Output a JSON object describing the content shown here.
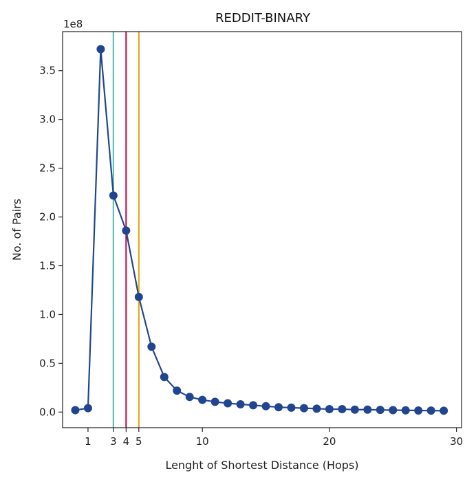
{
  "chart_data": {
    "type": "line",
    "title": "REDDIT-BINARY",
    "xlabel": "Lenght of Shortest Distance (Hops)",
    "ylabel": "No. of Pairs",
    "offset_text": "1e8",
    "xlim": [
      -1.0,
      30.4
    ],
    "ylim": [
      -0.16,
      3.9
    ],
    "y_scale_note": "values in units of 1e8",
    "x_ticks": [
      1,
      3,
      4,
      5,
      10,
      20,
      30
    ],
    "x_tick_labels": [
      "1",
      "3",
      "4",
      "5",
      "10",
      "20",
      "30"
    ],
    "y_ticks": [
      0.0,
      0.5,
      1.0,
      1.5,
      2.0,
      2.5,
      3.0,
      3.5
    ],
    "y_tick_labels": [
      "0.0",
      "0.5",
      "1.0",
      "1.5",
      "2.0",
      "2.5",
      "3.0",
      "3.5"
    ],
    "grid": false,
    "series": [
      {
        "color": "#21468f",
        "marker": "circle",
        "x": [
          0,
          1,
          2,
          3,
          4,
          5,
          6,
          7,
          8,
          9,
          10,
          11,
          12,
          13,
          14,
          15,
          16,
          17,
          18,
          19,
          20,
          21,
          22,
          23,
          24,
          25,
          26,
          27,
          28,
          29
        ],
        "y": [
          0.02,
          0.04,
          3.72,
          2.22,
          1.86,
          1.18,
          0.67,
          0.36,
          0.22,
          0.155,
          0.125,
          0.105,
          0.09,
          0.08,
          0.07,
          0.06,
          0.05,
          0.045,
          0.04,
          0.035,
          0.03,
          0.03,
          0.025,
          0.025,
          0.022,
          0.02,
          0.018,
          0.016,
          0.015,
          0.014
        ]
      }
    ],
    "vertical_lines": [
      {
        "x": 3,
        "color": "#5bc2b5"
      },
      {
        "x": 4,
        "color": "#c4144f"
      },
      {
        "x": 5,
        "color": "#e1a91b"
      }
    ]
  }
}
